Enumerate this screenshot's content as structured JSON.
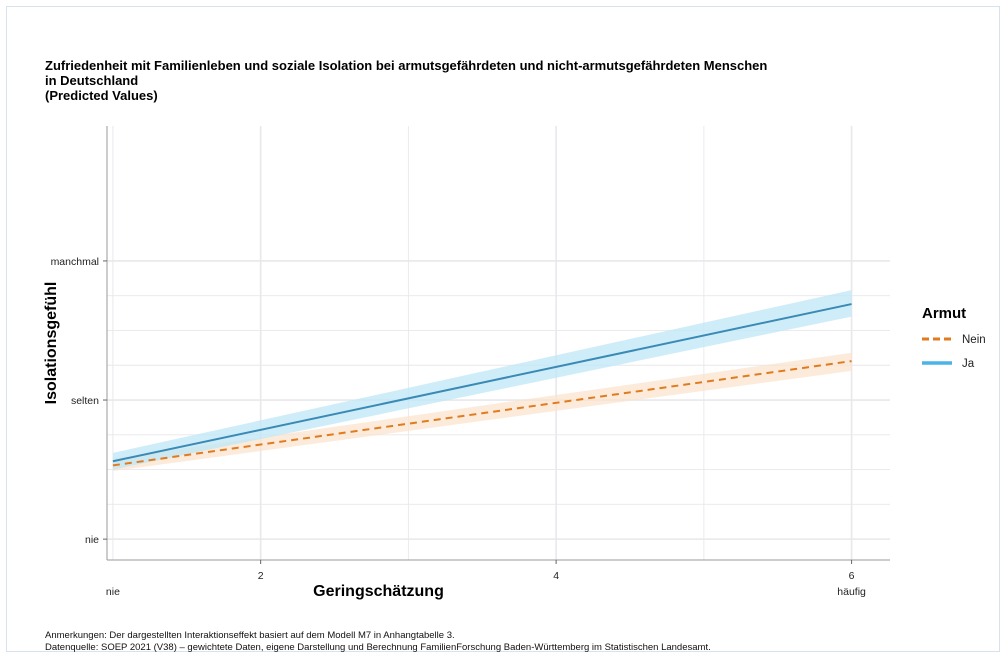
{
  "title": {
    "line1": "Zufriedenheit mit Familienleben und soziale Isolation bei armutsgefährdeten und nicht-armutsgefährdeten Menschen",
    "line2": "in Deutschland",
    "line3": "(Predicted Values)"
  },
  "notes": {
    "line1": "Anmerkungen: Der dargestellten Interaktionseffekt basiert auf dem Modell M7 in Anhangtabelle 3.",
    "line2": "Datenquelle: SOEP 2021 (V38) – gewichtete Daten, eigene Darstellung und Berechnung FamilienForschung Baden-Württemberg im Statistischen Landesamt."
  },
  "colors": {
    "ja": "#3a8ab5",
    "ja_band": "#bfe7f7",
    "ja_legend": "#4bb3e6",
    "nein": "#e07b1f",
    "nein_band": "#fbe3cc",
    "grid": "#e8e8ec"
  },
  "chart_data": {
    "type": "line",
    "xlabel": "Geringschätzung",
    "ylabel": "Isolationsgefühl",
    "xlim": [
      0.96,
      6.26
    ],
    "ylim": [
      0.85,
      3.97
    ],
    "grid": true,
    "x_ticks": [
      {
        "value": 2,
        "label": "2"
      },
      {
        "value": 4,
        "label": "4"
      },
      {
        "value": 6,
        "label": "6"
      }
    ],
    "x_extra_labels": [
      {
        "value": 1,
        "label": "nie"
      },
      {
        "value": 6,
        "label": "häufig"
      }
    ],
    "y_ticks": [
      {
        "value": 1,
        "label": "nie"
      },
      {
        "value": 2,
        "label": "selten"
      },
      {
        "value": 3,
        "label": "manchmal"
      }
    ],
    "legend": {
      "title": "Armut",
      "position": "right",
      "entries": [
        "Nein",
        "Ja"
      ]
    },
    "series": [
      {
        "name": "Nein",
        "style": "dashed",
        "x": [
          1,
          6
        ],
        "y": [
          1.53,
          2.28
        ],
        "lower": [
          1.49,
          2.21
        ],
        "upper": [
          1.58,
          2.34
        ]
      },
      {
        "name": "Ja",
        "style": "solid",
        "x": [
          1,
          6
        ],
        "y": [
          1.56,
          2.69
        ],
        "lower": [
          1.5,
          2.6
        ],
        "upper": [
          1.62,
          2.79
        ]
      }
    ]
  }
}
